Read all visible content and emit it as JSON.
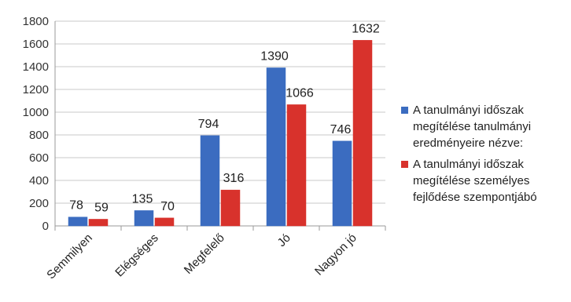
{
  "chart_data": {
    "type": "bar",
    "categories": [
      "Semmilyen",
      "Elégséges",
      "Megfelelő",
      "Jó",
      "Nagyon jó"
    ],
    "series": [
      {
        "name": "A tanulmányi időszak megítélése tanulmányi eredményeire nézve:",
        "values": [
          78,
          135,
          794,
          1390,
          746
        ],
        "color": "#3b6cc0"
      },
      {
        "name": "A tanulmányi időszak megítélése személyes fejlődése szempontjábó",
        "values": [
          59,
          70,
          316,
          1066,
          1632
        ],
        "color": "#d8322c"
      }
    ],
    "ylim": [
      0,
      1800
    ],
    "yticks": [
      0,
      200,
      400,
      600,
      800,
      1000,
      1200,
      1400,
      1600,
      1800
    ],
    "grid": true,
    "legend": "right",
    "title": "",
    "xlabel": "",
    "ylabel": ""
  }
}
